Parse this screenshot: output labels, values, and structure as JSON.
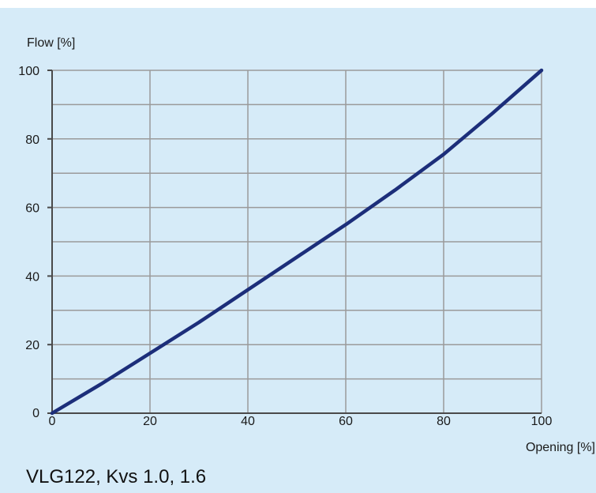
{
  "chart_data": {
    "type": "line",
    "ylabel": "Flow [%]",
    "xlabel": "Opening [%]",
    "xlim": [
      0,
      100
    ],
    "ylim": [
      0,
      100
    ],
    "x_ticks": [
      0,
      20,
      40,
      60,
      80,
      100
    ],
    "y_ticks": [
      0,
      20,
      40,
      60,
      80,
      100
    ],
    "grid": true,
    "series": [
      {
        "x": [
          0,
          10,
          20,
          30,
          40,
          50,
          60,
          70,
          80,
          90,
          100
        ],
        "values": [
          0,
          8.5,
          17.5,
          26.5,
          36,
          45.5,
          55,
          65,
          75.5,
          87.5,
          100
        ]
      }
    ]
  },
  "caption": "VLG122, Kvs 1.0, 1.6",
  "colors": {
    "background": "#d6ebf8",
    "plot_area": "#d6ebf8",
    "grid": "#9a9a9a",
    "axis": "#4a4a4a",
    "line": "#1c2e7a"
  }
}
